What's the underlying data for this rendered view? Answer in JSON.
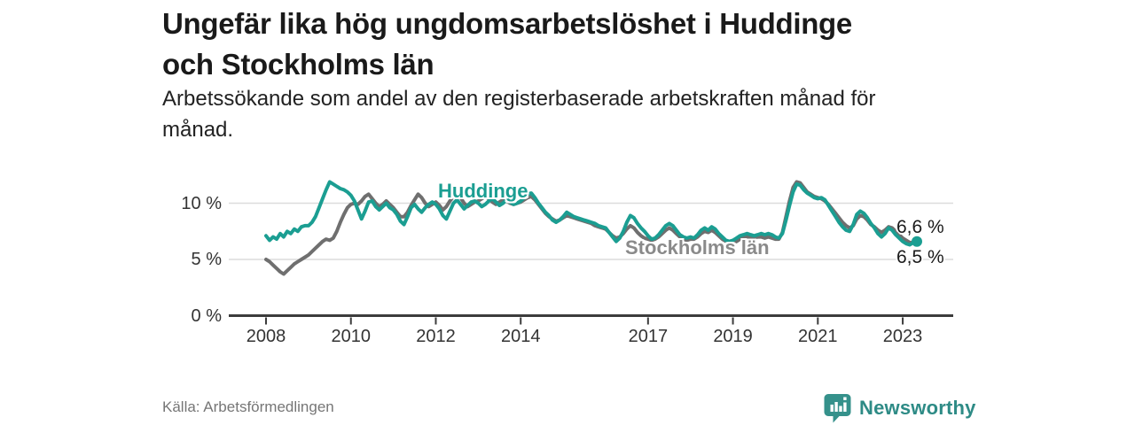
{
  "header": {
    "title": "Ungefär lika hög ungdomsarbetslöshet i Huddinge\noch Stockholms län",
    "subtitle": "Arbetssökande som andel av den registerbaserade arbetskraften månad för\nmånad."
  },
  "footer": {
    "source": "Källa: Arbetsförmedlingen",
    "brand": "Newsworthy"
  },
  "colors": {
    "huddinge_line": "#1b9e92",
    "stockholm_line": "#6f6f6f",
    "stockholm_label": "#8a8a8a",
    "gridline": "#dcdcdc",
    "axis": "#3c3c3c",
    "text": "#1a1a1a",
    "brand_teal": "#35918b"
  },
  "chart_data": {
    "type": "line",
    "title": "Ungefär lika hög ungdomsarbetslöshet i Huddinge och Stockholms län",
    "subtitle": "Arbetssökande som andel av den registerbaserade arbetskraften månad för månad.",
    "x_unit": "year-month",
    "x_start": 2008.0,
    "x_step": 0.0833,
    "x_ticks": [
      2008,
      2010,
      2012,
      2014,
      2017,
      2019,
      2021,
      2023
    ],
    "x_tick_labels": [
      "2008",
      "2010",
      "2012",
      "2014",
      "2017",
      "2019",
      "2021",
      "2023"
    ],
    "y_ticks": [
      0,
      5,
      10
    ],
    "y_tick_labels": [
      "0 %",
      "5 %",
      "10 %"
    ],
    "ylim": [
      0,
      13
    ],
    "grid": "horizontal",
    "legend_position": "inline-labels",
    "series": [
      {
        "name": "Huddinge",
        "color": "#1b9e92",
        "end_label": "6,6 %",
        "end_value": 6.6,
        "values": [
          7.1,
          6.7,
          7.0,
          6.8,
          7.3,
          7.0,
          7.5,
          7.3,
          7.7,
          7.5,
          7.9,
          8.0,
          8.0,
          8.3,
          8.8,
          9.6,
          10.4,
          11.2,
          11.9,
          11.7,
          11.5,
          11.3,
          11.2,
          11.0,
          10.7,
          10.2,
          9.4,
          8.6,
          9.3,
          10.1,
          10.2,
          9.7,
          9.4,
          9.7,
          10.0,
          9.6,
          9.4,
          9.0,
          8.4,
          8.1,
          8.8,
          9.6,
          9.9,
          9.5,
          9.2,
          9.6,
          9.9,
          10.1,
          9.9,
          9.5,
          8.9,
          8.6,
          9.3,
          10.0,
          10.3,
          9.9,
          9.5,
          9.8,
          10.1,
          10.2,
          10.0,
          9.7,
          9.9,
          10.2,
          10.4,
          10.1,
          9.8,
          10.0,
          10.3,
          10.1,
          9.9,
          10.0,
          10.2,
          10.5,
          10.8,
          10.9,
          10.5,
          10.0,
          9.6,
          9.2,
          8.9,
          8.5,
          8.3,
          8.5,
          8.8,
          9.2,
          9.0,
          8.8,
          8.7,
          8.6,
          8.5,
          8.4,
          8.3,
          8.2,
          8.0,
          7.9,
          7.8,
          7.4,
          7.0,
          6.6,
          6.9,
          7.5,
          8.3,
          8.9,
          8.7,
          8.2,
          7.8,
          7.5,
          7.1,
          6.8,
          6.9,
          7.2,
          7.6,
          8.0,
          8.2,
          8.0,
          7.6,
          7.2,
          7.0,
          6.9,
          7.0,
          6.9,
          7.2,
          7.6,
          7.8,
          7.6,
          7.9,
          7.7,
          7.3,
          7.0,
          6.7,
          6.6,
          6.7,
          6.9,
          7.1,
          7.2,
          7.3,
          7.2,
          7.1,
          7.2,
          7.3,
          7.2,
          7.3,
          7.2,
          7.0,
          6.9,
          7.3,
          8.5,
          9.8,
          11.0,
          11.7,
          11.6,
          11.2,
          10.9,
          10.7,
          10.5,
          10.4,
          10.5,
          10.3,
          9.8,
          9.3,
          8.8,
          8.3,
          7.9,
          7.6,
          7.5,
          8.1,
          9.0,
          9.3,
          9.1,
          8.7,
          8.2,
          7.8,
          7.3,
          7.0,
          7.3,
          7.8,
          7.6,
          7.2,
          6.9,
          6.6,
          6.4,
          6.3,
          6.5,
          6.6
        ]
      },
      {
        "name": "Stockholms län",
        "color": "#6f6f6f",
        "end_label": "6,5 %",
        "end_value": 6.5,
        "values": [
          5.0,
          4.8,
          4.5,
          4.2,
          3.9,
          3.7,
          4.0,
          4.3,
          4.6,
          4.8,
          5.0,
          5.2,
          5.4,
          5.7,
          6.0,
          6.3,
          6.6,
          6.8,
          6.7,
          6.9,
          7.5,
          8.3,
          9.0,
          9.6,
          9.9,
          10.0,
          9.9,
          10.2,
          10.6,
          10.8,
          10.4,
          10.0,
          9.7,
          9.9,
          10.2,
          9.9,
          9.6,
          9.2,
          8.8,
          8.8,
          9.2,
          9.8,
          10.3,
          10.8,
          10.5,
          10.0,
          9.7,
          9.9,
          10.1,
          9.8,
          9.4,
          9.7,
          10.2,
          10.6,
          10.9,
          10.5,
          10.0,
          9.7,
          9.9,
          10.1,
          10.2,
          10.4,
          10.6,
          10.4,
          10.1,
          9.9,
          10.1,
          10.3,
          10.2,
          10.0,
          9.9,
          10.0,
          10.1,
          10.3,
          10.5,
          10.6,
          10.3,
          9.9,
          9.5,
          9.1,
          8.8,
          8.6,
          8.4,
          8.5,
          8.7,
          8.9,
          8.8,
          8.7,
          8.6,
          8.5,
          8.4,
          8.3,
          8.2,
          8.0,
          7.9,
          7.8,
          7.7,
          7.4,
          7.1,
          6.9,
          7.0,
          7.3,
          7.7,
          8.0,
          7.8,
          7.4,
          7.1,
          6.9,
          6.8,
          6.7,
          6.8,
          7.0,
          7.3,
          7.6,
          7.8,
          7.6,
          7.3,
          7.0,
          6.8,
          6.7,
          6.8,
          6.8,
          7.0,
          7.3,
          7.5,
          7.4,
          7.6,
          7.4,
          7.1,
          6.8,
          6.6,
          6.5,
          6.5,
          6.6,
          6.8,
          6.9,
          7.0,
          7.0,
          6.9,
          7.0,
          7.0,
          6.9,
          7.0,
          6.9,
          6.8,
          6.8,
          7.4,
          8.8,
          10.2,
          11.4,
          11.9,
          11.8,
          11.4,
          11.0,
          10.8,
          10.6,
          10.5,
          10.4,
          10.2,
          9.9,
          9.5,
          9.1,
          8.7,
          8.3,
          8.0,
          7.8,
          8.0,
          8.6,
          8.9,
          8.8,
          8.5,
          8.1,
          7.9,
          7.6,
          7.4,
          7.6,
          7.9,
          7.8,
          7.5,
          7.2,
          6.9,
          6.7,
          6.5,
          6.5,
          6.5
        ]
      }
    ]
  }
}
